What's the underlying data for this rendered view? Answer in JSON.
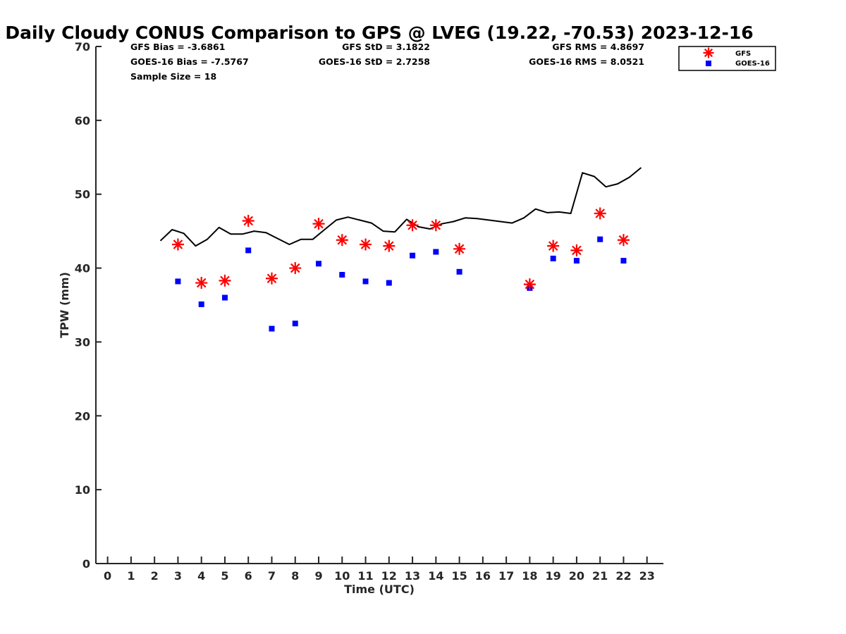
{
  "chart_data": {
    "type": "scatter",
    "title": "Daily Cloudy CONUS Comparison to GPS @ LVEG (19.22, -70.53) 2023-12-16",
    "xlabel": "Time (UTC)",
    "ylabel": "TPW (mm)",
    "xlim": [
      -0.5,
      23.7
    ],
    "ylim": [
      0,
      70
    ],
    "xticks": [
      "0",
      "1",
      "2",
      "3",
      "4",
      "5",
      "6",
      "7",
      "8",
      "9",
      "10",
      "11",
      "12",
      "13",
      "14",
      "15",
      "16",
      "17",
      "18",
      "19",
      "20",
      "21",
      "22",
      "23"
    ],
    "yticks": [
      "0",
      "10",
      "20",
      "30",
      "40",
      "50",
      "60",
      "70"
    ],
    "grid": false,
    "legend_position": "top-right",
    "stats": {
      "gfs_bias": "GFS Bias = -3.6861",
      "goes_bias": "GOES-16 Bias = -7.5767",
      "sample_size": "Sample Size = 18",
      "gfs_std": "GFS StD = 3.1822",
      "goes_std": "GOES-16 StD = 2.7258",
      "gfs_rms": "GFS RMS = 4.8697",
      "goes_rms": "GOES-16 RMS = 8.0521"
    },
    "series": [
      {
        "name": "GFS",
        "marker": "asterisk",
        "color": "#ff0000",
        "x": [
          3,
          4,
          5,
          6,
          7,
          8,
          9,
          10,
          11,
          12,
          13,
          14,
          15,
          18,
          19,
          20,
          21,
          22
        ],
        "y": [
          43.2,
          38.0,
          38.3,
          46.4,
          38.6,
          40.0,
          46.0,
          43.8,
          43.2,
          43.0,
          45.8,
          45.8,
          42.6,
          37.8,
          43.0,
          42.4,
          47.4,
          43.8
        ]
      },
      {
        "name": "GOES-16",
        "marker": "square",
        "color": "#0000ff",
        "x": [
          3,
          4,
          5,
          6,
          7,
          8,
          9,
          10,
          11,
          12,
          13,
          14,
          15,
          18,
          19,
          20,
          21,
          22
        ],
        "y": [
          38.2,
          35.1,
          36.0,
          42.4,
          31.8,
          32.5,
          40.6,
          39.1,
          38.2,
          38.0,
          41.7,
          42.2,
          39.5,
          37.3,
          41.3,
          41.0,
          43.9,
          41.0
        ]
      },
      {
        "marker": "line",
        "color": "#000000",
        "x": [
          2.25,
          2.75,
          3.25,
          3.75,
          4.25,
          4.75,
          5.25,
          5.75,
          6.25,
          6.75,
          7.25,
          7.75,
          8.25,
          8.75,
          9.25,
          9.75,
          10.25,
          10.75,
          11.25,
          11.75,
          12.25,
          12.75,
          13.25,
          13.75,
          14.25,
          14.75,
          15.25,
          15.75,
          16.25,
          16.75,
          17.25,
          17.75,
          18.25,
          18.75,
          19.25,
          19.75,
          20.25,
          20.75,
          21.25,
          21.75,
          22.25,
          22.75
        ],
        "y": [
          43.7,
          45.2,
          44.7,
          43.0,
          43.9,
          45.5,
          44.6,
          44.6,
          45.0,
          44.8,
          44.0,
          43.2,
          43.9,
          43.9,
          45.2,
          46.5,
          46.9,
          46.5,
          46.1,
          45.0,
          44.9,
          46.6,
          45.6,
          45.3,
          46.0,
          46.3,
          46.8,
          46.7,
          46.5,
          46.3,
          46.1,
          46.8,
          48.0,
          47.5,
          47.6,
          47.4,
          52.9,
          52.4,
          51.0,
          51.4,
          52.3,
          53.6
        ]
      }
    ]
  }
}
